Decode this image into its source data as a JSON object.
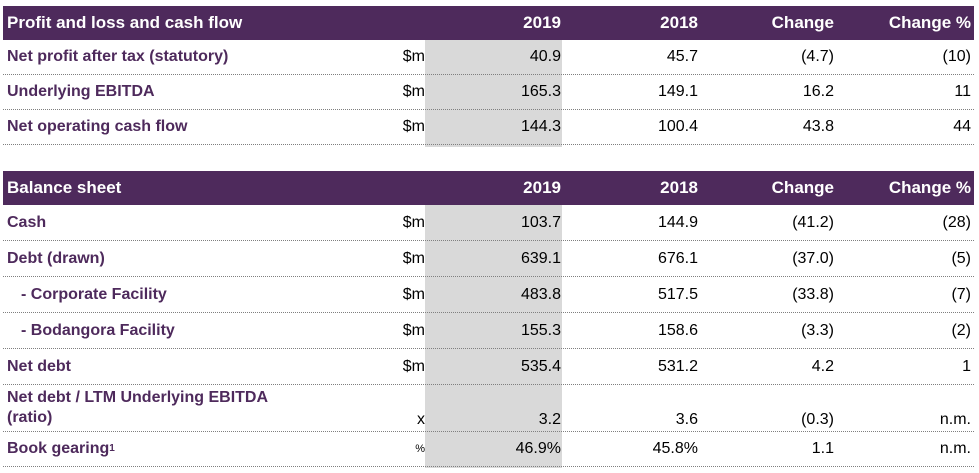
{
  "pl": {
    "title": "Profit and loss and cash flow",
    "cols": [
      "2019",
      "2018",
      "Change",
      "Change %"
    ],
    "rows": [
      {
        "label": "Net profit after tax (statutory)",
        "unit": "$m",
        "v2019": "40.9",
        "v2018": "45.7",
        "change": "(4.7)",
        "change_pct": "(10)"
      },
      {
        "label": "Underlying EBITDA",
        "unit": "$m",
        "v2019": "165.3",
        "v2018": "149.1",
        "change": "16.2",
        "change_pct": "11"
      },
      {
        "label": "Net operating cash flow",
        "unit": "$m",
        "v2019": "144.3",
        "v2018": "100.4",
        "change": "43.8",
        "change_pct": "44"
      }
    ]
  },
  "bs": {
    "title": "Balance sheet",
    "cols": [
      "2019",
      "2018",
      "Change",
      "Change %"
    ],
    "rows": [
      {
        "label": "Cash",
        "unit": "$m",
        "v2019": "103.7",
        "v2018": "144.9",
        "change": "(41.2)",
        "change_pct": "(28)"
      },
      {
        "label": "Debt (drawn)",
        "unit": "$m",
        "v2019": "639.1",
        "v2018": "676.1",
        "change": "(37.0)",
        "change_pct": "(5)"
      },
      {
        "label": "- Corporate Facility",
        "unit": "$m",
        "v2019": "483.8",
        "v2018": "517.5",
        "change": "(33.8)",
        "change_pct": "(7)"
      },
      {
        "label": "- Bodangora Facility",
        "unit": "$m",
        "v2019": "155.3",
        "v2018": "158.6",
        "change": "(3.3)",
        "change_pct": "(2)"
      },
      {
        "label": "Net debt",
        "unit": "$m",
        "v2019": "535.4",
        "v2018": "531.2",
        "change": "4.2",
        "change_pct": "1"
      },
      {
        "label_line1": "Net debt / LTM Underlying EBITDA",
        "label_line2": "(ratio)",
        "unit": "x",
        "v2019": "3.2",
        "v2018": "3.6",
        "change": "(0.3)",
        "change_pct": "n.m."
      },
      {
        "label": "Book gearing",
        "footnote": "1",
        "unit": "%",
        "v2019": "46.9%",
        "v2018": "45.8%",
        "change": "1.1",
        "change_pct": "n.m."
      }
    ]
  }
}
